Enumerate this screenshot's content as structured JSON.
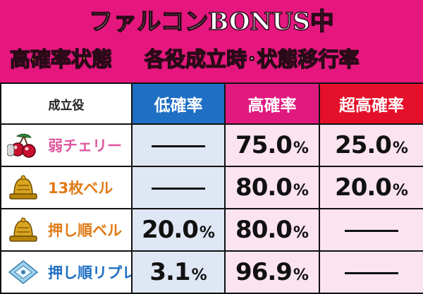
{
  "header": {
    "line1": "ファルコンBONUS中",
    "line2_highlight": "高確率状態",
    "line2_rest": "各役成立時･状態移行率"
  },
  "columns": {
    "label": "成立役",
    "low": "低確率",
    "high": "高確率",
    "super": "超高確率"
  },
  "rows": [
    {
      "name": "弱チェリー",
      "name_color": "#e0589e",
      "icon": "cherry-icon",
      "low": "",
      "high": "75.0",
      "super": "25.0"
    },
    {
      "name": "13枚ベル",
      "name_color": "#e07a14",
      "icon": "bell-icon",
      "low": "",
      "high": "80.0",
      "super": "20.0"
    },
    {
      "name": "押し順ベル",
      "name_color": "#e07a14",
      "icon": "bell-icon",
      "low": "20.0",
      "high": "80.0",
      "super": ""
    },
    {
      "name": "押し順リプレイ",
      "name_color": "#1f6fc4",
      "icon": "replay-icon",
      "low": "3.1",
      "high": "96.9",
      "super": ""
    }
  ],
  "percent_sign": "%",
  "colors": {
    "header_bg": "#e5177e",
    "title_highlight": "#ffe300",
    "low_header": "#1f6fc4",
    "high_header": "#e0197f",
    "super_header": "#e4102a"
  }
}
